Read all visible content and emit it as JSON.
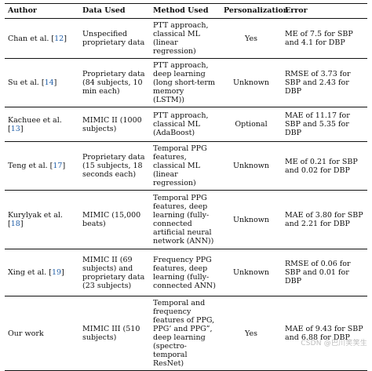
{
  "table": {
    "headers": [
      "Author",
      "Data Used",
      "Method Used",
      "Personalization",
      "Error"
    ],
    "rows": [
      {
        "author": "Chan et al.",
        "ref": "12",
        "data": "Unspecified proprietary data",
        "method": "PTT approach, classical ML (linear regression)",
        "personalization": "Yes",
        "error": "ME of 7.5 for SBP and 4.1 for DBP"
      },
      {
        "author": "Su et al.",
        "ref": "14",
        "data": "Proprietary data (84 subjects, 10 min each)",
        "method": "PTT approach, deep learning (long short-term memory (LSTM))",
        "personalization": "Unknown",
        "error": "RMSE of 3.73 for SBP and 2.43 for DBP"
      },
      {
        "author": "Kachuee et al.",
        "ref": "13",
        "data": "MIMIC II (1000 subjects)",
        "method": "PTT approach, classical ML (AdaBoost)",
        "personalization": "Optional",
        "error": "MAE of 11.17 for SBP and 5.35 for DBP"
      },
      {
        "author": "Teng et al.",
        "ref": "17",
        "data": "Proprietary data (15 subjects, 18 seconds each)",
        "method": "Temporal PPG features, classical ML (linear regression)",
        "personalization": "Unknown",
        "error": "ME of 0.21 for SBP and 0.02 for DBP"
      },
      {
        "author": "Kurylyak et al.",
        "ref": "18",
        "data": "MIMIC (15,000 beats)",
        "method": "Temporal PPG features, deep learning (fully-connected artificial neural network (ANN))",
        "personalization": "Unknown",
        "error": "MAE of 3.80 for SBP and 2.21 for DBP"
      },
      {
        "author": "Xing et al.",
        "ref": "19",
        "data": "MIMIC II (69 subjects) and proprietary data (23 subjects)",
        "method": "Frequency PPG features, deep learning (fully-connected ANN)",
        "personalization": "Unknown",
        "error": "RMSE of 0.06 for SBP and 0.01 for DBP"
      },
      {
        "author": "Our work",
        "ref": "",
        "data": "MIMIC III (510 subjects)",
        "method": "Temporal and frequency features of PPG, PPG’ and PPG”, deep learning (spectro-temporal ResNet)",
        "personalization": "Yes",
        "error": "MAE of 9.43 for SBP and 6.88 for DBP"
      }
    ]
  },
  "watermark": "CSDN @巴川笑笑生"
}
